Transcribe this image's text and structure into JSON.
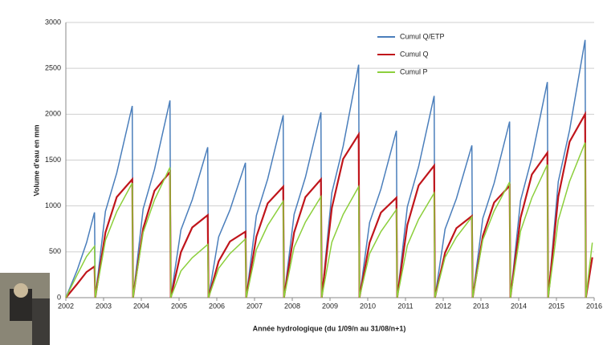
{
  "chart_data": {
    "type": "line",
    "y_label": "Volume d'eau en mm",
    "x_label": "Année hydrologique (du 1/09/n au 31/08/n+1)",
    "x": [
      2002.0,
      2002.3,
      2002.55,
      2002.76,
      2002.78,
      2003.05,
      2003.35,
      2003.76,
      2003.78,
      2004.05,
      2004.35,
      2004.76,
      2004.78,
      2005.05,
      2005.35,
      2005.76,
      2005.78,
      2006.05,
      2006.35,
      2006.76,
      2006.78,
      2007.05,
      2007.35,
      2007.76,
      2007.78,
      2008.05,
      2008.35,
      2008.76,
      2008.78,
      2009.05,
      2009.35,
      2009.76,
      2009.78,
      2010.05,
      2010.35,
      2010.76,
      2010.78,
      2011.05,
      2011.35,
      2011.76,
      2011.78,
      2012.05,
      2012.35,
      2012.76,
      2012.78,
      2013.05,
      2013.35,
      2013.76,
      2013.78,
      2014.05,
      2014.35,
      2014.76,
      2014.78,
      2015.05,
      2015.35,
      2015.76,
      2015.78,
      2015.95
    ],
    "series": [
      {
        "name": "Cumul Q/ETP",
        "color": "#4a7ebb",
        "values": [
          0,
          300,
          600,
          930,
          0,
          941,
          1359,
          2090,
          0,
          968,
          1398,
          2150,
          0,
          738,
          1066,
          1640,
          0,
          662,
          956,
          1470,
          0,
          896,
          1294,
          1990,
          0,
          909,
          1313,
          2020,
          0,
          1143,
          1651,
          2540,
          0,
          819,
          1183,
          1820,
          0,
          990,
          1430,
          2200,
          0,
          747,
          1079,
          1660,
          0,
          864,
          1248,
          1920,
          0,
          1058,
          1528,
          2350,
          0,
          1265,
          1827,
          2810,
          0,
          null
        ]
      },
      {
        "name": "Cumul Q",
        "color": "#c0151b",
        "values": [
          0,
          150,
          280,
          340,
          0,
          710,
          1097,
          1290,
          0,
          754,
          1165,
          1370,
          0,
          495,
          765,
          900,
          0,
          396,
          612,
          720,
          0,
          666,
          1029,
          1210,
          0,
          710,
          1097,
          1290,
          0,
          979,
          1513,
          1780,
          0,
          600,
          927,
          1090,
          0,
          792,
          1224,
          1440,
          0,
          490,
          757,
          890,
          0,
          671,
          1037,
          1220,
          0,
          869,
          1343,
          1580,
          0,
          1100,
          1700,
          2000,
          0,
          440
        ]
      },
      {
        "name": "Cumul P",
        "color": "#8ccf3c",
        "values": [
          0,
          250,
          450,
          560,
          0,
          625,
          938,
          1250,
          0,
          710,
          1065,
          1420,
          0,
          290,
          435,
          580,
          0,
          320,
          480,
          640,
          0,
          525,
          788,
          1050,
          0,
          550,
          825,
          1100,
          0,
          605,
          908,
          1210,
          0,
          480,
          720,
          960,
          0,
          570,
          855,
          1140,
          0,
          440,
          660,
          880,
          0,
          630,
          945,
          1260,
          0,
          725,
          1088,
          1450,
          0,
          845,
          1268,
          1690,
          0,
          600
        ]
      }
    ],
    "xlim": [
      2002,
      2016
    ],
    "xticks": [
      2002,
      2003,
      2004,
      2005,
      2006,
      2007,
      2008,
      2009,
      2010,
      2011,
      2012,
      2013,
      2014,
      2015,
      2016
    ],
    "ylim": [
      0,
      3000
    ],
    "yticks": [
      0,
      500,
      1000,
      1500,
      2000,
      2500,
      3000
    ],
    "grid": true,
    "legend": "top-right"
  }
}
